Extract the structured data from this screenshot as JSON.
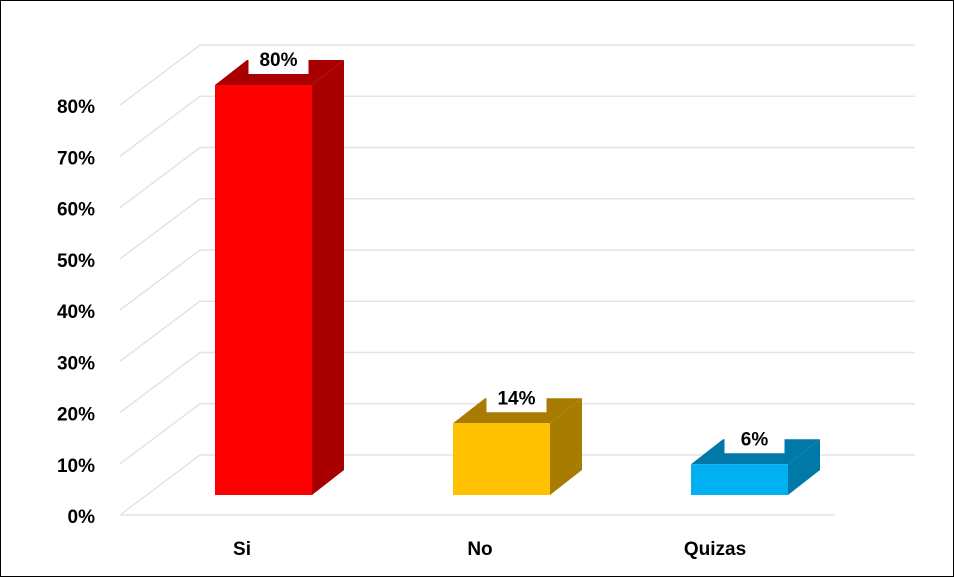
{
  "chart_data": {
    "type": "bar3d",
    "categories": [
      "Si",
      "No",
      "Quizas"
    ],
    "values": [
      80,
      14,
      6
    ],
    "value_labels": [
      "80%",
      "14%",
      "6%"
    ],
    "colors": [
      "#ff0000",
      "#ffc000",
      "#00b0f0"
    ],
    "side_colors": [
      "#a80000",
      "#a87c00",
      "#0078a8"
    ],
    "ylim": [
      0,
      80
    ],
    "yticks": [
      {
        "value": 0,
        "label": "0%"
      },
      {
        "value": 10,
        "label": "10%"
      },
      {
        "value": 20,
        "label": "20%"
      },
      {
        "value": 30,
        "label": "30%"
      },
      {
        "value": 40,
        "label": "40%"
      },
      {
        "value": 50,
        "label": "50%"
      },
      {
        "value": 60,
        "label": "60%"
      },
      {
        "value": 70,
        "label": "70%"
      },
      {
        "value": 80,
        "label": "80%"
      }
    ],
    "grid": true
  }
}
